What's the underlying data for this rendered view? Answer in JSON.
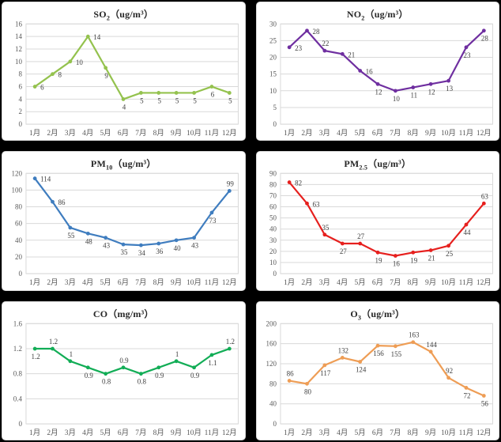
{
  "window": {
    "background": "#000000",
    "panel_background": "#ffffff",
    "grid_color": "#d9d9d9",
    "tick_color": "#595959",
    "label_color": "#404040"
  },
  "chart_data": [
    {
      "id": "so2",
      "type": "line",
      "title": {
        "prefix": "SO",
        "sub": "2",
        "suffix": "（ug/m³）"
      },
      "categories": [
        "1月",
        "2月",
        "3月",
        "4月",
        "5月",
        "6月",
        "7月",
        "8月",
        "9月",
        "10月",
        "11月",
        "12月"
      ],
      "values": [
        6,
        8,
        10,
        14,
        9,
        4,
        5,
        5,
        5,
        5,
        6,
        5
      ],
      "labels": [
        "6",
        "8",
        "10",
        "14",
        "9",
        "4",
        "5",
        "5",
        "5",
        "5",
        "6",
        "5"
      ],
      "label_sides": [
        "right",
        "right",
        "right",
        "right",
        "below",
        "below",
        "below",
        "below",
        "below",
        "below",
        "below",
        "below"
      ],
      "color": "#94C24E",
      "ylim": [
        0,
        16
      ],
      "ytick_step": 2,
      "yticks": [
        "0",
        "2",
        "4",
        "6",
        "8",
        "10",
        "12",
        "14",
        "16"
      ],
      "grid": true,
      "legend": "none"
    },
    {
      "id": "no2",
      "type": "line",
      "title": {
        "prefix": "NO",
        "sub": "2",
        "suffix": "（ug/m³）"
      },
      "categories": [
        "1月",
        "2月",
        "3月",
        "4月",
        "5月",
        "6月",
        "7月",
        "8月",
        "9月",
        "10月",
        "11月",
        "12月"
      ],
      "values": [
        23,
        28,
        22,
        21,
        16,
        12,
        10,
        11,
        12,
        13,
        23,
        28
      ],
      "labels": [
        "23",
        "28",
        "22",
        "21",
        "16",
        "12",
        "10",
        "11",
        "12",
        "13",
        "23",
        "28"
      ],
      "label_sides": [
        "right",
        "right",
        "above",
        "right",
        "right",
        "below",
        "below",
        "below",
        "below",
        "below",
        "below",
        "below"
      ],
      "color": "#6F2FA0",
      "ylim": [
        0,
        30
      ],
      "ytick_step": 5,
      "yticks": [
        "0",
        "5",
        "10",
        "15",
        "20",
        "25",
        "30"
      ],
      "grid": true,
      "legend": "none"
    },
    {
      "id": "pm10",
      "type": "line",
      "title": {
        "prefix": "PM",
        "sub": "10",
        "suffix": "（ug/m³）"
      },
      "categories": [
        "1月",
        "2月",
        "3月",
        "4月",
        "5月",
        "6月",
        "7月",
        "8月",
        "9月",
        "10月",
        "11月",
        "12月"
      ],
      "values": [
        114,
        86,
        55,
        48,
        43,
        35,
        34,
        36,
        40,
        43,
        73,
        99
      ],
      "labels": [
        "114",
        "86",
        "55",
        "48",
        "43",
        "35",
        "34",
        "36",
        "40",
        "43",
        "73",
        "99"
      ],
      "label_sides": [
        "right",
        "right",
        "below",
        "below",
        "below",
        "below",
        "below",
        "below",
        "below",
        "below",
        "below",
        "above"
      ],
      "color": "#3F7DBF",
      "ylim": [
        0,
        120
      ],
      "ytick_step": 20,
      "yticks": [
        "0",
        "20",
        "40",
        "60",
        "80",
        "100",
        "120"
      ],
      "grid": true,
      "legend": "none"
    },
    {
      "id": "pm25",
      "type": "line",
      "title": {
        "prefix": "PM",
        "sub": "2.5",
        "suffix": "（ug/m³）"
      },
      "categories": [
        "1月",
        "2月",
        "3月",
        "4月",
        "5月",
        "6月",
        "7月",
        "8月",
        "9月",
        "10月",
        "11月",
        "12月"
      ],
      "values": [
        82,
        63,
        35,
        27,
        27,
        19,
        16,
        19,
        21,
        25,
        44,
        63
      ],
      "labels": [
        "82",
        "63",
        "35",
        "27",
        "27",
        "19",
        "16",
        "19",
        "21",
        "25",
        "44",
        "63"
      ],
      "label_sides": [
        "right",
        "right",
        "above",
        "below",
        "above",
        "below",
        "below",
        "below",
        "below",
        "below",
        "below",
        "above"
      ],
      "color": "#E6201E",
      "ylim": [
        0,
        90
      ],
      "ytick_step": 10,
      "yticks": [
        "0",
        "10",
        "20",
        "30",
        "40",
        "50",
        "60",
        "70",
        "80",
        "90"
      ],
      "grid": true,
      "legend": "none"
    },
    {
      "id": "co",
      "type": "line",
      "title": {
        "prefix": "CO",
        "sub": "",
        "suffix": "（mg/m³）"
      },
      "categories": [
        "1月",
        "2月",
        "3月",
        "4月",
        "5月",
        "6月",
        "7月",
        "8月",
        "9月",
        "10月",
        "11月",
        "12月"
      ],
      "values": [
        1.2,
        1.2,
        1,
        0.9,
        0.8,
        0.9,
        0.8,
        0.9,
        1,
        0.9,
        1.1,
        1.2
      ],
      "labels": [
        "1.2",
        "1.2",
        "1",
        "0.9",
        "0.8",
        "0.9",
        "0.8",
        "0.9",
        "1",
        "0.9",
        "1.1",
        "1.2"
      ],
      "label_sides": [
        "below",
        "above",
        "above",
        "below",
        "below",
        "above",
        "below",
        "below",
        "above",
        "below",
        "below",
        "above"
      ],
      "color": "#12AD56",
      "ylim": [
        0,
        1.6
      ],
      "ytick_step": 0.4,
      "yticks": [
        "0",
        "0.4",
        "0.8",
        "1.2",
        "1.6"
      ],
      "grid": true,
      "legend": "none"
    },
    {
      "id": "o3",
      "type": "line",
      "title": {
        "prefix": "O",
        "sub": "3",
        "suffix": "（ug/m³）"
      },
      "categories": [
        "1月",
        "2月",
        "3月",
        "4月",
        "5月",
        "6月",
        "7月",
        "8月",
        "9月",
        "10月",
        "11月",
        "12月"
      ],
      "values": [
        86,
        80,
        117,
        132,
        124,
        156,
        155,
        163,
        144,
        92,
        72,
        56
      ],
      "labels": [
        "86",
        "80",
        "117",
        "132",
        "124",
        "156",
        "155",
        "163",
        "144",
        "92",
        "72",
        "56"
      ],
      "label_sides": [
        "above",
        "below",
        "below",
        "above",
        "below",
        "below",
        "below",
        "above",
        "above",
        "above",
        "below",
        "below"
      ],
      "color": "#EE9D55",
      "ylim": [
        0,
        200
      ],
      "ytick_step": 40,
      "yticks": [
        "0",
        "40",
        "80",
        "120",
        "160",
        "200"
      ],
      "grid": true,
      "legend": "none"
    }
  ]
}
